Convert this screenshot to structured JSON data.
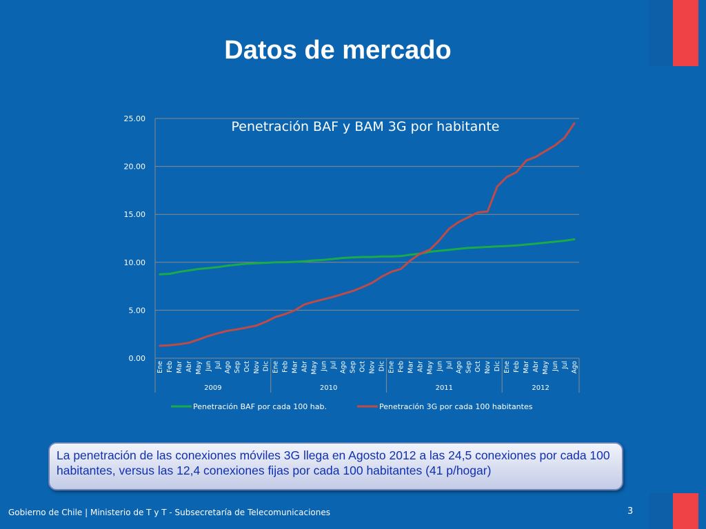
{
  "slide": {
    "title": "Datos de mercado",
    "callout": "La penetración de las conexiones móviles 3G llega en Agosto 2012 a las 24,5 conexiones por cada 100 habitantes, versus las 12,4 conexiones fijas por cada 100 habitantes (41 p/hogar)",
    "footer": "Gobierno de Chile | Ministerio de T y T - Subsecretaría de Telecomunicaciones",
    "page_number": "3"
  },
  "colors": {
    "background": "#0a64b0",
    "series_baf": "#1aaa4a",
    "series_3g": "#be4b48",
    "flag_red": "#ef4247"
  },
  "chart_data": {
    "type": "line",
    "title": "Penetración BAF y BAM 3G por habitante",
    "ylim": [
      0,
      25
    ],
    "y_ticks": [
      "0.00",
      "5.00",
      "10.00",
      "15.00",
      "20.00",
      "25.00"
    ],
    "grid": true,
    "legend_position": "bottom",
    "categories": [
      "Ene",
      "Feb",
      "Mar",
      "Abr",
      "May",
      "Jun",
      "Jul",
      "Ago",
      "Sep",
      "Oct",
      "Nov",
      "Dic",
      "Ene",
      "Feb",
      "Mar",
      "Abr",
      "May",
      "Jun",
      "Jul",
      "Ago",
      "Sep",
      "Oct",
      "Nov",
      "Dic",
      "Ene",
      "Feb",
      "Mar",
      "Abr",
      "May",
      "Jun",
      "Jul",
      "Ago",
      "Sep",
      "Oct",
      "Nov",
      "Dic",
      "Ene",
      "Feb",
      "Mar",
      "Abr",
      "May",
      "Jun",
      "Jul",
      "Ago"
    ],
    "year_groups": [
      {
        "label": "2009",
        "start": 0,
        "end": 11
      },
      {
        "label": "2010",
        "start": 12,
        "end": 23
      },
      {
        "label": "2011",
        "start": 24,
        "end": 35
      },
      {
        "label": "2012",
        "start": 36,
        "end": 43
      }
    ],
    "series": [
      {
        "name": "Penetración BAF por cada 100 hab.",
        "values": [
          8.75,
          8.8,
          9.0,
          9.15,
          9.3,
          9.4,
          9.5,
          9.65,
          9.75,
          9.85,
          9.9,
          9.95,
          10.0,
          10.0,
          10.05,
          10.1,
          10.2,
          10.25,
          10.35,
          10.45,
          10.5,
          10.55,
          10.55,
          10.6,
          10.6,
          10.65,
          10.8,
          10.9,
          11.1,
          11.2,
          11.3,
          11.4,
          11.5,
          11.55,
          11.6,
          11.65,
          11.7,
          11.75,
          11.85,
          11.95,
          12.05,
          12.15,
          12.25,
          12.4
        ]
      },
      {
        "name": "Penetración 3G por cada 100 habitantes",
        "values": [
          1.3,
          1.35,
          1.45,
          1.6,
          1.95,
          2.3,
          2.6,
          2.85,
          3.0,
          3.2,
          3.4,
          3.8,
          4.3,
          4.6,
          5.0,
          5.6,
          5.9,
          6.15,
          6.4,
          6.7,
          7.0,
          7.4,
          7.85,
          8.5,
          9.0,
          9.3,
          10.2,
          10.9,
          11.3,
          12.3,
          13.5,
          14.2,
          14.7,
          15.2,
          15.3,
          17.9,
          18.9,
          19.4,
          20.6,
          21.0,
          21.6,
          22.2,
          23.0,
          24.5
        ]
      }
    ]
  }
}
